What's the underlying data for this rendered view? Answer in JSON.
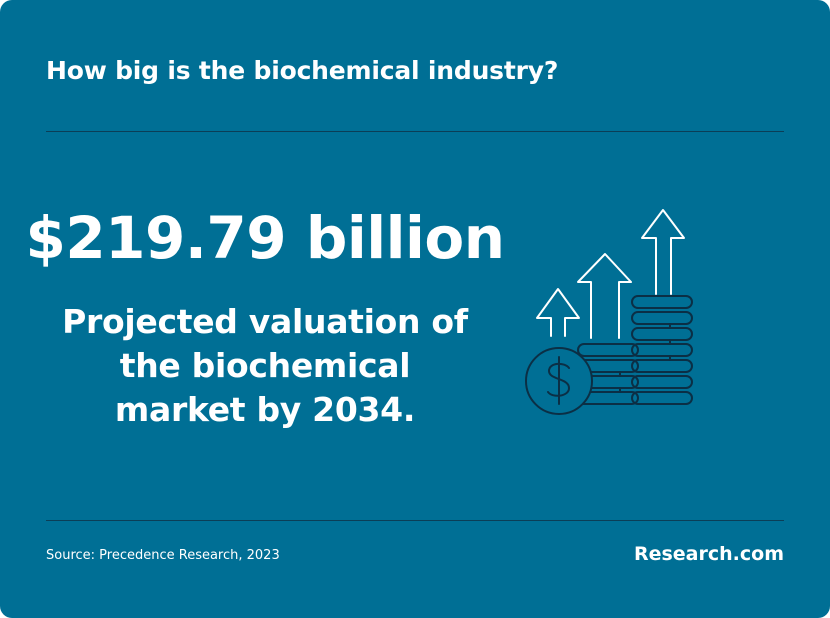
{
  "card": {
    "title": "How big is the biochemical industry?",
    "headline_value": "$219.79 billion",
    "description_lines": [
      "Projected valuation of",
      "the biochemical",
      "market by 2034."
    ],
    "source": "Source: Precedence Research, 2023",
    "brand": "Research.com"
  },
  "colors": {
    "background": "#006f95",
    "text": "#ffffff",
    "divider": "#0b3e57",
    "icon_stroke": "#0b2f45",
    "icon_arrow": "#ffffff"
  },
  "icons": [
    "dollar-coin-icon",
    "coin-stack-icon",
    "growth-arrow-icon"
  ]
}
